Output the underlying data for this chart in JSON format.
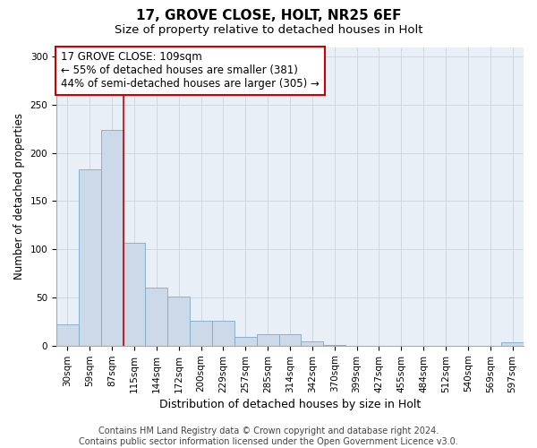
{
  "title1": "17, GROVE CLOSE, HOLT, NR25 6EF",
  "title2": "Size of property relative to detached houses in Holt",
  "xlabel": "Distribution of detached houses by size in Holt",
  "ylabel": "Number of detached properties",
  "bar_values": [
    22,
    183,
    224,
    107,
    60,
    51,
    26,
    26,
    9,
    12,
    12,
    4,
    1,
    0,
    0,
    0,
    0,
    0,
    0,
    0,
    3
  ],
  "bar_labels": [
    "30sqm",
    "59sqm",
    "87sqm",
    "115sqm",
    "144sqm",
    "172sqm",
    "200sqm",
    "229sqm",
    "257sqm",
    "285sqm",
    "314sqm",
    "342sqm",
    "370sqm",
    "399sqm",
    "427sqm",
    "455sqm",
    "484sqm",
    "512sqm",
    "540sqm",
    "569sqm",
    "597sqm"
  ],
  "bar_color": "#ccd9e8",
  "bar_edge_color": "#7baac8",
  "grid_color": "#c8d4e0",
  "background_color": "#e8eff7",
  "vline_x_index": 3,
  "vline_color": "#cc0000",
  "annotation_line1": "17 GROVE CLOSE: 109sqm",
  "annotation_line2": "← 55% of detached houses are smaller (381)",
  "annotation_line3": "44% of semi-detached houses are larger (305) →",
  "annotation_box_color": "#ffffff",
  "annotation_box_edge_color": "#cc0000",
  "footer_text": "Contains HM Land Registry data © Crown copyright and database right 2024.\nContains public sector information licensed under the Open Government Licence v3.0.",
  "ylim": [
    0,
    310
  ],
  "yticks": [
    0,
    50,
    100,
    150,
    200,
    250,
    300
  ],
  "title1_fontsize": 11,
  "title2_fontsize": 9.5,
  "xlabel_fontsize": 9,
  "ylabel_fontsize": 8.5,
  "tick_fontsize": 7.5,
  "annotation_fontsize": 8.5,
  "footer_fontsize": 7
}
